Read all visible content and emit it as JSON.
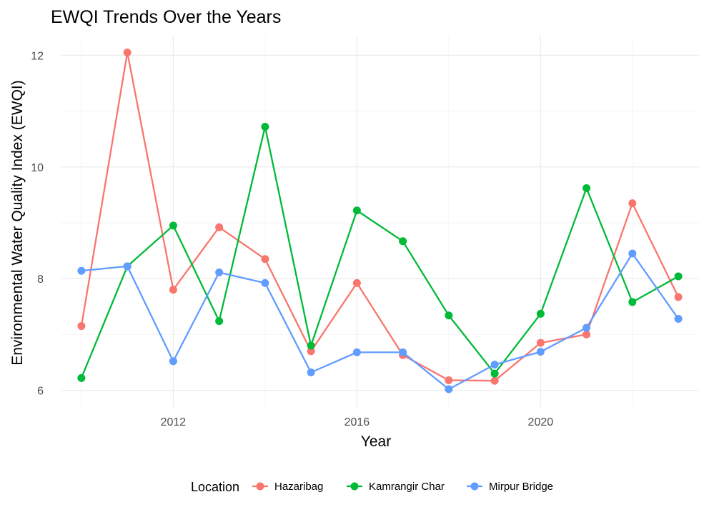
{
  "chart_data": {
    "type": "line",
    "title": "EWQI Trends Over the Years",
    "xlabel": "Year",
    "ylabel": "Environmental Water Quality Index (EWQI)",
    "x": [
      2010,
      2011,
      2012,
      2013,
      2014,
      2015,
      2016,
      2017,
      2018,
      2019,
      2020,
      2021,
      2022,
      2023
    ],
    "xticks": [
      2012,
      2016,
      2020
    ],
    "xtick_labels": [
      "2012",
      "2016",
      "2020"
    ],
    "yticks": [
      6,
      8,
      10,
      12
    ],
    "ytick_labels": [
      "6",
      "8",
      "10",
      "12"
    ],
    "xlim": [
      2009.55,
      2023.45
    ],
    "ylim": [
      5.7,
      12.35
    ],
    "grid": true,
    "legend": {
      "title": "Location",
      "position": "bottom"
    },
    "series": [
      {
        "name": "Hazaribag",
        "color": "#F8766D",
        "values": [
          7.15,
          12.05,
          7.8,
          8.92,
          8.35,
          6.7,
          7.92,
          6.63,
          6.18,
          6.17,
          6.85,
          7.0,
          9.35,
          7.67
        ]
      },
      {
        "name": "Kamrangir Char",
        "color": "#00BA38",
        "values": [
          6.22,
          8.22,
          8.95,
          7.24,
          10.72,
          6.8,
          9.22,
          8.67,
          7.34,
          6.3,
          7.37,
          9.62,
          7.58,
          8.04
        ]
      },
      {
        "name": "Mirpur Bridge",
        "color": "#619CFF",
        "values": [
          8.14,
          8.22,
          6.52,
          8.11,
          7.92,
          6.32,
          6.68,
          6.68,
          6.02,
          6.46,
          6.69,
          7.12,
          8.45,
          7.28
        ]
      }
    ]
  }
}
